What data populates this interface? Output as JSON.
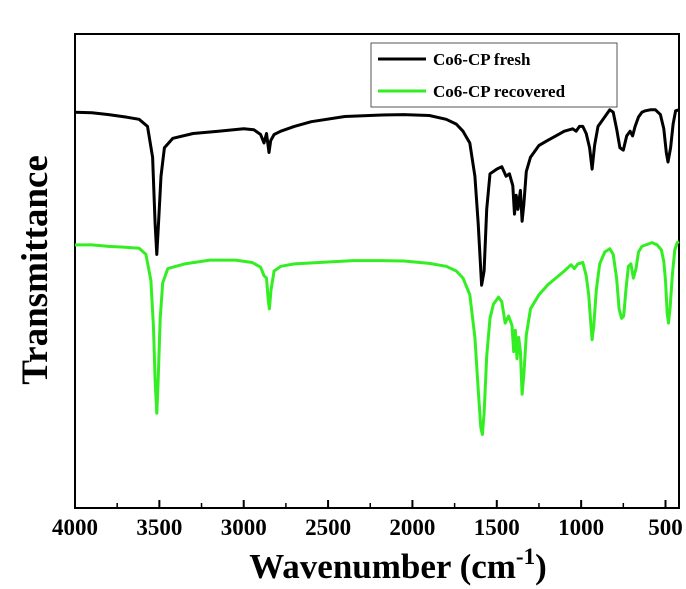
{
  "chart_data": {
    "type": "line",
    "xlabel": "Wavenumber (cm",
    "xlabel_sup": "-1",
    "xlabel_close": ")",
    "ylabel": "Transmittance",
    "xlim": [
      4000,
      420
    ],
    "ylim": [
      0,
      100
    ],
    "y_ticks_labeled": false,
    "grid": false,
    "legend": "top-right",
    "x_ticks": [
      4000,
      3500,
      3000,
      2500,
      2000,
      1500,
      1000,
      500
    ],
    "x_tick_labels": [
      "4000",
      "3500",
      "3000",
      "2500",
      "2000",
      "1500",
      "1000",
      "500"
    ],
    "series": [
      {
        "name": "Co6-CP fresh",
        "color": "#000000",
        "points": [
          [
            4000,
            83.5
          ],
          [
            3900,
            83.4
          ],
          [
            3800,
            83.0
          ],
          [
            3700,
            82.5
          ],
          [
            3620,
            82.0
          ],
          [
            3570,
            80.5
          ],
          [
            3540,
            74.0
          ],
          [
            3525,
            60.0
          ],
          [
            3515,
            53.5
          ],
          [
            3505,
            60.0
          ],
          [
            3490,
            70.0
          ],
          [
            3470,
            76.0
          ],
          [
            3420,
            78.0
          ],
          [
            3300,
            79.0
          ],
          [
            3150,
            79.5
          ],
          [
            3000,
            80.0
          ],
          [
            2940,
            79.8
          ],
          [
            2900,
            78.8
          ],
          [
            2880,
            77.0
          ],
          [
            2865,
            79.0
          ],
          [
            2850,
            75.0
          ],
          [
            2840,
            77.5
          ],
          [
            2820,
            78.8
          ],
          [
            2780,
            79.5
          ],
          [
            2700,
            80.5
          ],
          [
            2600,
            81.5
          ],
          [
            2400,
            82.6
          ],
          [
            2200,
            82.9
          ],
          [
            2050,
            83.0
          ],
          [
            1900,
            82.8
          ],
          [
            1800,
            82.0
          ],
          [
            1740,
            81.0
          ],
          [
            1700,
            79.5
          ],
          [
            1660,
            77.0
          ],
          [
            1630,
            70.0
          ],
          [
            1610,
            60.0
          ],
          [
            1590,
            47.0
          ],
          [
            1575,
            50.0
          ],
          [
            1560,
            63.0
          ],
          [
            1540,
            70.5
          ],
          [
            1500,
            71.5
          ],
          [
            1470,
            72.0
          ],
          [
            1445,
            70.0
          ],
          [
            1425,
            70.5
          ],
          [
            1405,
            68.0
          ],
          [
            1395,
            62.0
          ],
          [
            1385,
            66.0
          ],
          [
            1375,
            63.0
          ],
          [
            1360,
            67.0
          ],
          [
            1350,
            60.5
          ],
          [
            1340,
            64.0
          ],
          [
            1325,
            71.0
          ],
          [
            1300,
            74.0
          ],
          [
            1250,
            76.5
          ],
          [
            1200,
            77.5
          ],
          [
            1150,
            78.5
          ],
          [
            1100,
            79.5
          ],
          [
            1050,
            80.0
          ],
          [
            1030,
            79.5
          ],
          [
            1010,
            80.5
          ],
          [
            990,
            80.5
          ],
          [
            970,
            79.0
          ],
          [
            950,
            76.0
          ],
          [
            935,
            71.5
          ],
          [
            920,
            76.5
          ],
          [
            900,
            80.5
          ],
          [
            870,
            82.0
          ],
          [
            830,
            84.0
          ],
          [
            810,
            83.5
          ],
          [
            790,
            80.0
          ],
          [
            770,
            76.0
          ],
          [
            750,
            75.5
          ],
          [
            730,
            78.5
          ],
          [
            710,
            79.5
          ],
          [
            695,
            78.5
          ],
          [
            680,
            80.5
          ],
          [
            660,
            82.5
          ],
          [
            640,
            83.5
          ],
          [
            620,
            83.8
          ],
          [
            590,
            84.0
          ],
          [
            560,
            84.0
          ],
          [
            530,
            83.0
          ],
          [
            510,
            80.0
          ],
          [
            495,
            75.0
          ],
          [
            485,
            73.0
          ],
          [
            470,
            76.0
          ],
          [
            455,
            81.0
          ],
          [
            440,
            83.8
          ],
          [
            420,
            84.0
          ]
        ]
      },
      {
        "name": "Co6-CP recovered",
        "color": "#33ee22",
        "points": [
          [
            4000,
            55.5
          ],
          [
            3900,
            55.5
          ],
          [
            3800,
            55.2
          ],
          [
            3700,
            55.0
          ],
          [
            3620,
            54.8
          ],
          [
            3580,
            53.5
          ],
          [
            3550,
            48.0
          ],
          [
            3535,
            38.0
          ],
          [
            3525,
            27.0
          ],
          [
            3515,
            20.0
          ],
          [
            3508,
            26.0
          ],
          [
            3495,
            40.0
          ],
          [
            3480,
            47.5
          ],
          [
            3450,
            50.5
          ],
          [
            3350,
            51.5
          ],
          [
            3200,
            52.3
          ],
          [
            3050,
            52.3
          ],
          [
            2950,
            51.8
          ],
          [
            2900,
            50.8
          ],
          [
            2880,
            49.0
          ],
          [
            2865,
            48.5
          ],
          [
            2855,
            44.0
          ],
          [
            2848,
            42.0
          ],
          [
            2838,
            46.0
          ],
          [
            2820,
            50.0
          ],
          [
            2780,
            51.0
          ],
          [
            2700,
            51.5
          ],
          [
            2500,
            51.9
          ],
          [
            2350,
            52.2
          ],
          [
            2200,
            52.2
          ],
          [
            2050,
            52.1
          ],
          [
            1900,
            51.6
          ],
          [
            1800,
            51.0
          ],
          [
            1740,
            50.0
          ],
          [
            1700,
            48.5
          ],
          [
            1660,
            45.0
          ],
          [
            1630,
            36.0
          ],
          [
            1610,
            25.0
          ],
          [
            1595,
            17.0
          ],
          [
            1585,
            15.5
          ],
          [
            1575,
            20.0
          ],
          [
            1560,
            32.0
          ],
          [
            1540,
            40.0
          ],
          [
            1520,
            43.0
          ],
          [
            1490,
            44.5
          ],
          [
            1470,
            43.5
          ],
          [
            1450,
            39.0
          ],
          [
            1430,
            40.5
          ],
          [
            1410,
            38.5
          ],
          [
            1400,
            33.0
          ],
          [
            1390,
            37.5
          ],
          [
            1380,
            31.5
          ],
          [
            1370,
            36.0
          ],
          [
            1360,
            33.0
          ],
          [
            1350,
            24.0
          ],
          [
            1340,
            28.0
          ],
          [
            1325,
            36.5
          ],
          [
            1300,
            42.0
          ],
          [
            1250,
            45.0
          ],
          [
            1200,
            47.0
          ],
          [
            1150,
            48.5
          ],
          [
            1100,
            50.0
          ],
          [
            1060,
            51.3
          ],
          [
            1040,
            50.5
          ],
          [
            1020,
            51.5
          ],
          [
            990,
            51.8
          ],
          [
            970,
            49.0
          ],
          [
            955,
            45.0
          ],
          [
            945,
            40.0
          ],
          [
            935,
            35.5
          ],
          [
            925,
            38.5
          ],
          [
            910,
            46.0
          ],
          [
            890,
            51.5
          ],
          [
            860,
            54.0
          ],
          [
            830,
            54.7
          ],
          [
            810,
            53.5
          ],
          [
            790,
            48.5
          ],
          [
            775,
            42.0
          ],
          [
            760,
            40.0
          ],
          [
            748,
            40.5
          ],
          [
            735,
            46.0
          ],
          [
            720,
            51.0
          ],
          [
            705,
            51.5
          ],
          [
            690,
            48.5
          ],
          [
            675,
            50.5
          ],
          [
            660,
            54.0
          ],
          [
            640,
            55.2
          ],
          [
            610,
            55.6
          ],
          [
            580,
            56.0
          ],
          [
            550,
            55.5
          ],
          [
            525,
            54.5
          ],
          [
            510,
            52.0
          ],
          [
            500,
            48.0
          ],
          [
            490,
            41.0
          ],
          [
            482,
            39.0
          ],
          [
            472,
            42.5
          ],
          [
            460,
            49.0
          ],
          [
            445,
            54.5
          ],
          [
            430,
            56.0
          ],
          [
            420,
            56.2
          ]
        ]
      }
    ]
  }
}
